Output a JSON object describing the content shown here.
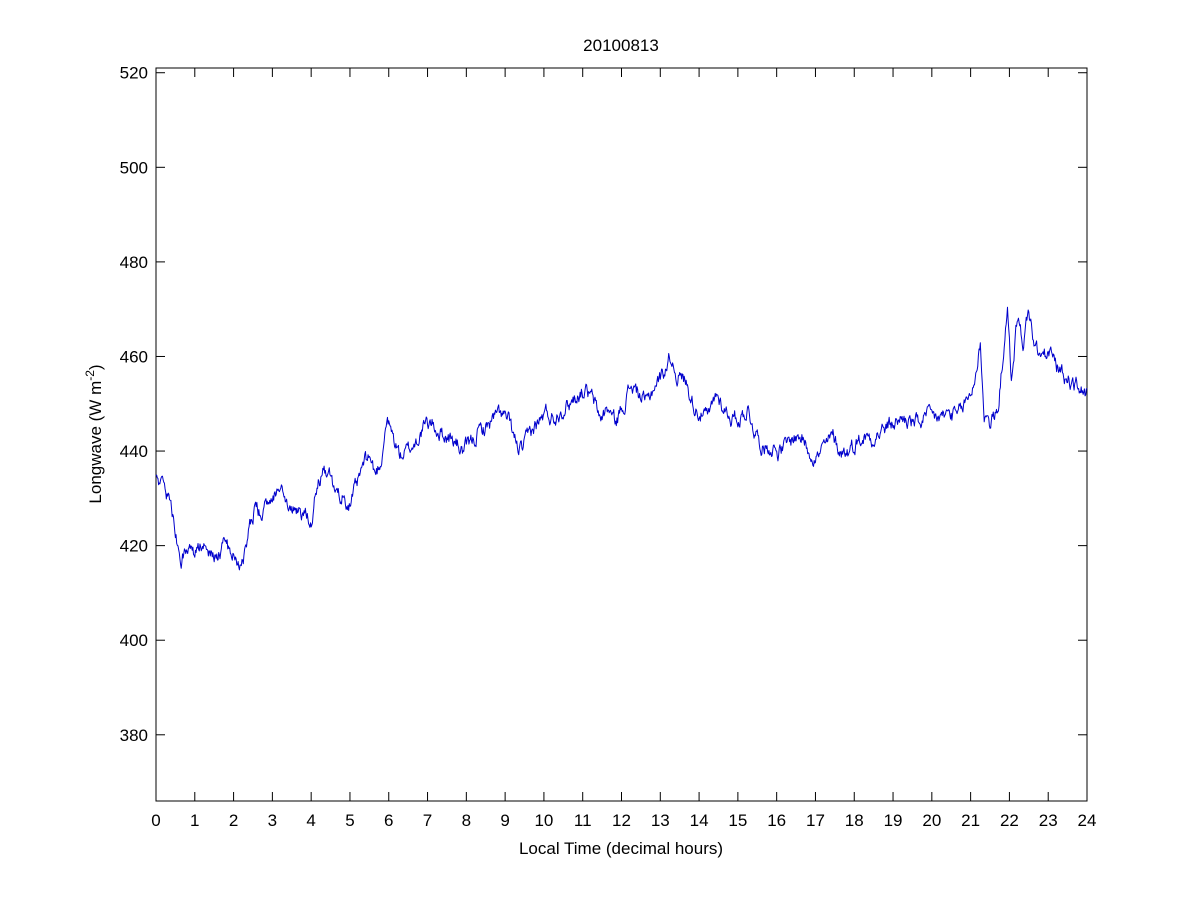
{
  "chart_data": {
    "type": "line",
    "title": "20100813",
    "xlabel": "Local Time (decimal hours)",
    "ylabel": {
      "main": "Longwave (W m",
      "superscript": "-2",
      "close": ")"
    },
    "xlim": [
      0,
      24
    ],
    "ylim": [
      366,
      521
    ],
    "x_ticks": [
      0,
      1,
      2,
      3,
      4,
      5,
      6,
      7,
      8,
      9,
      10,
      11,
      12,
      13,
      14,
      15,
      16,
      17,
      18,
      19,
      20,
      21,
      22,
      23,
      24
    ],
    "x_tick_labels": [
      "0",
      "1",
      "2",
      "3",
      "4",
      "5",
      "6",
      "7",
      "8",
      "9",
      "10",
      "11",
      "12",
      "13",
      "14",
      "15",
      "16",
      "17",
      "18",
      "19",
      "20",
      "21",
      "22",
      "23",
      "24"
    ],
    "y_ticks": [
      380,
      400,
      420,
      440,
      460,
      480,
      500,
      520
    ],
    "y_tick_labels": [
      "380",
      "400",
      "420",
      "440",
      "460",
      "480",
      "500",
      "520"
    ],
    "grid": false,
    "series": [
      {
        "color": "#0000cc",
        "anchors": [
          [
            0.0,
            434
          ],
          [
            0.15,
            433
          ],
          [
            0.3,
            431
          ],
          [
            0.45,
            425
          ],
          [
            0.55,
            421
          ],
          [
            0.65,
            418
          ],
          [
            0.8,
            420
          ],
          [
            1.0,
            418
          ],
          [
            1.2,
            420
          ],
          [
            1.4,
            419
          ],
          [
            1.6,
            418
          ],
          [
            1.8,
            420
          ],
          [
            2.0,
            418
          ],
          [
            2.1,
            416
          ],
          [
            2.25,
            418
          ],
          [
            2.4,
            423
          ],
          [
            2.55,
            428
          ],
          [
            2.75,
            426
          ],
          [
            2.9,
            430
          ],
          [
            3.1,
            432
          ],
          [
            3.3,
            431
          ],
          [
            3.45,
            427
          ],
          [
            3.6,
            428
          ],
          [
            3.8,
            427
          ],
          [
            4.0,
            426
          ],
          [
            4.15,
            433
          ],
          [
            4.3,
            435
          ],
          [
            4.5,
            434
          ],
          [
            4.65,
            430
          ],
          [
            4.8,
            431
          ],
          [
            5.0,
            429
          ],
          [
            5.2,
            433
          ],
          [
            5.35,
            437
          ],
          [
            5.5,
            439
          ],
          [
            5.65,
            435
          ],
          [
            5.8,
            438
          ],
          [
            5.95,
            447
          ],
          [
            6.1,
            443
          ],
          [
            6.3,
            439
          ],
          [
            6.5,
            440
          ],
          [
            6.7,
            442
          ],
          [
            6.9,
            445
          ],
          [
            7.1,
            446
          ],
          [
            7.3,
            444
          ],
          [
            7.5,
            443
          ],
          [
            7.7,
            442
          ],
          [
            7.9,
            440
          ],
          [
            8.1,
            441
          ],
          [
            8.3,
            444
          ],
          [
            8.5,
            445
          ],
          [
            8.7,
            447
          ],
          [
            8.9,
            448
          ],
          [
            9.1,
            446
          ],
          [
            9.3,
            441
          ],
          [
            9.45,
            440
          ],
          [
            9.65,
            444
          ],
          [
            9.85,
            446
          ],
          [
            10.05,
            448
          ],
          [
            10.25,
            447
          ],
          [
            10.45,
            449
          ],
          [
            10.65,
            450
          ],
          [
            10.85,
            452
          ],
          [
            11.05,
            453
          ],
          [
            11.25,
            451
          ],
          [
            11.45,
            447
          ],
          [
            11.65,
            449
          ],
          [
            11.85,
            446
          ],
          [
            12.05,
            450
          ],
          [
            12.25,
            454
          ],
          [
            12.45,
            452
          ],
          [
            12.65,
            450
          ],
          [
            12.85,
            454
          ],
          [
            13.05,
            456
          ],
          [
            13.25,
            460
          ],
          [
            13.45,
            456
          ],
          [
            13.65,
            455
          ],
          [
            13.85,
            450
          ],
          [
            14.05,
            448
          ],
          [
            14.25,
            447
          ],
          [
            14.45,
            452
          ],
          [
            14.65,
            449
          ],
          [
            14.85,
            447
          ],
          [
            15.05,
            447
          ],
          [
            15.25,
            449
          ],
          [
            15.45,
            444
          ],
          [
            15.65,
            441
          ],
          [
            15.85,
            441
          ],
          [
            16.05,
            440
          ],
          [
            16.25,
            441
          ],
          [
            16.45,
            443
          ],
          [
            16.65,
            443
          ],
          [
            16.85,
            440
          ],
          [
            17.05,
            439
          ],
          [
            17.25,
            441
          ],
          [
            17.45,
            443
          ],
          [
            17.65,
            440
          ],
          [
            17.85,
            440
          ],
          [
            18.05,
            442
          ],
          [
            18.25,
            443
          ],
          [
            18.45,
            443
          ],
          [
            18.65,
            444
          ],
          [
            18.85,
            445
          ],
          [
            19.05,
            446
          ],
          [
            19.25,
            447
          ],
          [
            19.45,
            446
          ],
          [
            19.65,
            446
          ],
          [
            19.85,
            447
          ],
          [
            20.05,
            447
          ],
          [
            20.25,
            447
          ],
          [
            20.45,
            448
          ],
          [
            20.65,
            447
          ],
          [
            20.85,
            450
          ],
          [
            21.0,
            452
          ],
          [
            21.15,
            457
          ],
          [
            21.25,
            463
          ],
          [
            21.35,
            448
          ],
          [
            21.5,
            446
          ],
          [
            21.7,
            448
          ],
          [
            21.85,
            462
          ],
          [
            21.95,
            469
          ],
          [
            22.05,
            455
          ],
          [
            22.2,
            468
          ],
          [
            22.35,
            463
          ],
          [
            22.5,
            470
          ],
          [
            22.65,
            462
          ],
          [
            22.8,
            460
          ],
          [
            22.95,
            460
          ],
          [
            23.05,
            461
          ],
          [
            23.2,
            458
          ],
          [
            23.4,
            456
          ],
          [
            23.55,
            455
          ],
          [
            23.7,
            454
          ],
          [
            23.85,
            453
          ],
          [
            24.0,
            452
          ]
        ]
      }
    ]
  }
}
